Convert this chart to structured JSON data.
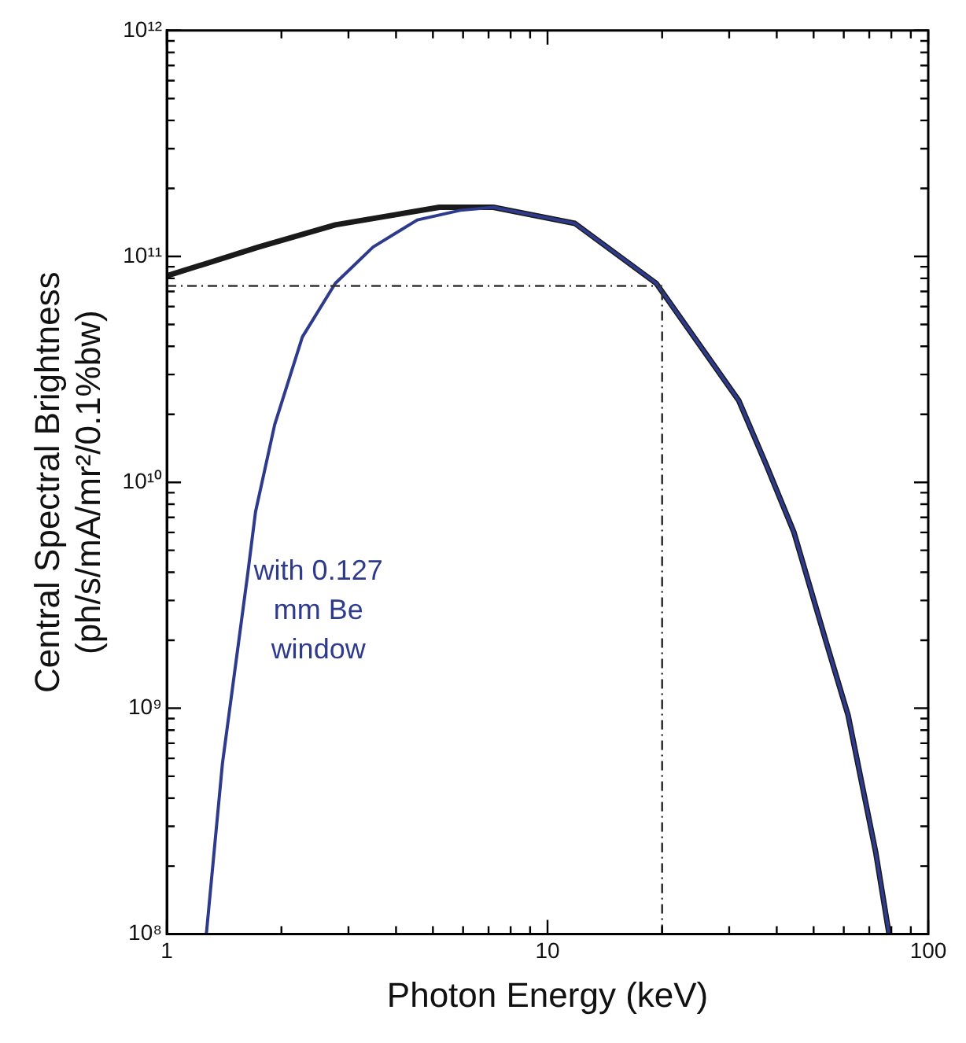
{
  "chart_data": {
    "type": "line",
    "xlabel": "Photon Energy (keV)",
    "ylabel": "Central Spectral Brightness\n(ph/s/mA/mr²/0.1%bw)",
    "log": "xy",
    "xlim": [
      1,
      100
    ],
    "ylim": [
      100000000,
      1000000000000
    ],
    "xticks": [
      1,
      {
        "value": 2,
        "label": null
      },
      {
        "value": 3,
        "label": null
      },
      {
        "value": 4,
        "label": null
      },
      {
        "value": 5,
        "label": null
      },
      {
        "value": 6,
        "label": null
      },
      {
        "value": 7,
        "label": null
      },
      {
        "value": 8,
        "label": null
      },
      {
        "value": 9,
        "label": null
      },
      10,
      {
        "value": 20,
        "label": null
      },
      {
        "value": 30,
        "label": null
      },
      {
        "value": 40,
        "label": null
      },
      {
        "value": 50,
        "label": null
      },
      {
        "value": 60,
        "label": null
      },
      {
        "value": 70,
        "label": null
      },
      {
        "value": 80,
        "label": null
      },
      {
        "value": 90,
        "label": null
      },
      100
    ],
    "yticks": [
      {
        "value": 100000000,
        "label": "10⁸"
      },
      {
        "value": 200000000,
        "label": null
      },
      {
        "value": 300000000,
        "label": null
      },
      {
        "value": 400000000,
        "label": null
      },
      {
        "value": 500000000,
        "label": null
      },
      {
        "value": 600000000,
        "label": null
      },
      {
        "value": 700000000,
        "label": null
      },
      {
        "value": 800000000,
        "label": null
      },
      {
        "value": 900000000,
        "label": null
      },
      {
        "value": 1000000000,
        "label": "10⁹"
      },
      {
        "value": 2000000000,
        "label": null
      },
      {
        "value": 3000000000,
        "label": null
      },
      {
        "value": 4000000000,
        "label": null
      },
      {
        "value": 5000000000,
        "label": null
      },
      {
        "value": 6000000000,
        "label": null
      },
      {
        "value": 7000000000,
        "label": null
      },
      {
        "value": 8000000000,
        "label": null
      },
      {
        "value": 9000000000,
        "label": null
      },
      {
        "value": 10000000000,
        "label": "10¹⁰"
      },
      {
        "value": 20000000000,
        "label": null
      },
      {
        "value": 30000000000,
        "label": null
      },
      {
        "value": 40000000000,
        "label": null
      },
      {
        "value": 50000000000,
        "label": null
      },
      {
        "value": 60000000000,
        "label": null
      },
      {
        "value": 70000000000,
        "label": null
      },
      {
        "value": 80000000000,
        "label": null
      },
      {
        "value": 90000000000,
        "label": null
      },
      {
        "value": 100000000000,
        "label": "10¹¹"
      },
      {
        "value": 200000000000,
        "label": null
      },
      {
        "value": 300000000000,
        "label": null
      },
      {
        "value": 400000000000,
        "label": null
      },
      {
        "value": 500000000000,
        "label": null
      },
      {
        "value": 600000000000,
        "label": null
      },
      {
        "value": 700000000000,
        "label": null
      },
      {
        "value": 800000000000,
        "label": null
      },
      {
        "value": 900000000000,
        "label": null
      },
      {
        "value": 1000000000000,
        "label": "10¹²"
      }
    ],
    "grid": false,
    "legend": false,
    "marker": "none",
    "line_style": "solid",
    "series": [
      {
        "color": "#1a1a1a",
        "x": [
          1,
          1.74,
          2.77,
          5.2,
          7.2,
          11.8,
          19.3,
          31.8,
          37.5,
          44.4,
          54,
          61.6,
          72.8,
          78.9
        ],
        "values": [
          82000000000,
          110000000000,
          138000000000,
          165000000000,
          165000000000,
          140000000000,
          76000000000,
          23000000000,
          12000000000,
          6000000000,
          1950000000,
          930000000,
          230000000,
          100000000
        ]
      },
      {
        "color": "#2e3a8c",
        "x": [
          1.27,
          1.4,
          1.63,
          1.71,
          1.92,
          2.27,
          2.77,
          3.48,
          4.55,
          5.9,
          7.2,
          11.8,
          19.3,
          31.8,
          37.5,
          44.4,
          54,
          61.6,
          72.8,
          78.9
        ],
        "values": [
          100000000,
          570000000,
          3900000000,
          7400000000,
          18000000000,
          44000000000,
          76000000000,
          110000000000,
          145000000000,
          160000000000,
          165000000000,
          140000000000,
          76000000000,
          23000000000,
          12000000000,
          6000000000,
          1950000000,
          930000000,
          230000000,
          100000000
        ]
      }
    ],
    "ref_lines": [
      {
        "axis": "x",
        "value": 20,
        "line_style": "dashed",
        "color": "#333333"
      },
      {
        "axis": "y",
        "value": 74000000000,
        "line_style": "dashed",
        "color": "#333333"
      }
    ],
    "annotations": [
      "with 0.127\nmm Be\nwindow"
    ]
  }
}
